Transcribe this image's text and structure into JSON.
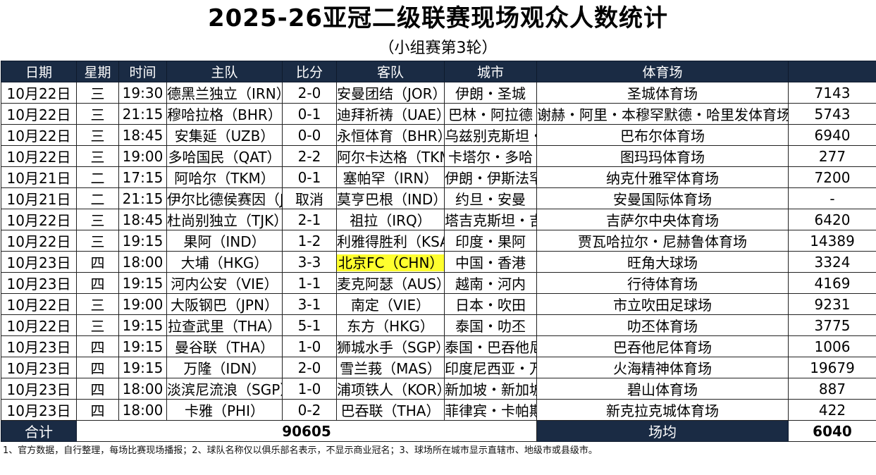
{
  "title": "2025-26亚冠二级联赛现场观众人数统计",
  "subtitle": "（小组赛第3轮）",
  "headers": {
    "date": "日期",
    "weekday": "星期",
    "time": "时间",
    "home": "主队",
    "score": "比分",
    "away": "客队",
    "city": "城市",
    "venue": "体育场",
    "attendance": ""
  },
  "rows": [
    {
      "date": "10月22日",
      "weekday": "三",
      "time": "19:30",
      "home": "德黑兰独立（IRN）",
      "score": "2-0",
      "away": "安曼团结（JOR）",
      "city": "伊朗・圣城",
      "venue": "圣城体育场",
      "attendance": "7143"
    },
    {
      "date": "10月22日",
      "weekday": "三",
      "time": "21:15",
      "home": "穆哈拉格（BHR）",
      "score": "0-1",
      "away": "迪拜祈祷（UAE）",
      "city": "巴林・阿拉德",
      "venue": "谢赫・阿里・本穆罕默德・哈里发体育场",
      "attendance": "5743"
    },
    {
      "date": "10月22日",
      "weekday": "三",
      "time": "18:45",
      "home": "安集延（UZB）",
      "score": "0-0",
      "away": "永恒体育（BHR）",
      "city": "乌兹别克斯坦・安集延",
      "venue": "巴布尔体育场",
      "attendance": "6940"
    },
    {
      "date": "10月22日",
      "weekday": "三",
      "time": "19:00",
      "home": "多哈国民（QAT）",
      "score": "2-2",
      "away": "阿尔卡达格（TKM）",
      "city": "卡塔尔・多哈",
      "venue": "图玛玛体育场",
      "attendance": "277"
    },
    {
      "date": "10月21日",
      "weekday": "二",
      "time": "17:15",
      "home": "阿哈尔（TKM）",
      "score": "0-1",
      "away": "塞帕罕（IRN）",
      "city": "伊朗・伊斯法罕",
      "venue": "纳克什雅罕体育场",
      "attendance": "7200"
    },
    {
      "date": "10月21日",
      "weekday": "二",
      "time": "21:15",
      "home": "伊尔比德侯赛因（JOR）",
      "score": "取消",
      "away": "莫亨巴根（IND）",
      "city": "约旦・安曼",
      "venue": "安曼国际体育场",
      "attendance": "-"
    },
    {
      "date": "10月22日",
      "weekday": "三",
      "time": "18:45",
      "home": "杜尚别独立（TJK）",
      "score": "2-1",
      "away": "祖拉（IRQ）",
      "city": "塔吉克斯坦・吉萨尔",
      "venue": "吉萨尔中央体育场",
      "attendance": "6420"
    },
    {
      "date": "10月22日",
      "weekday": "三",
      "time": "19:15",
      "home": "果阿（IND）",
      "score": "1-2",
      "away": "利雅得胜利（KSA）",
      "city": "印度・果阿",
      "venue": "贾瓦哈拉尔・尼赫鲁体育场",
      "attendance": "14389"
    },
    {
      "date": "10月23日",
      "weekday": "四",
      "time": "18:00",
      "home": "大埔（HKG）",
      "score": "3-3",
      "away": "北京FC（CHN）",
      "city": "中国・香港",
      "venue": "旺角大球场",
      "attendance": "3324"
    },
    {
      "date": "10月23日",
      "weekday": "四",
      "time": "19:15",
      "home": "河内公安（VIE）",
      "score": "1-1",
      "away": "麦克阿瑟（AUS）",
      "city": "越南・河内",
      "venue": "行待体育场",
      "attendance": "4169"
    },
    {
      "date": "10月22日",
      "weekday": "三",
      "time": "19:00",
      "home": "大阪钢巴（JPN）",
      "score": "3-1",
      "away": "南定（VIE）",
      "city": "日本・吹田",
      "venue": "市立吹田足球场",
      "attendance": "9231"
    },
    {
      "date": "10月22日",
      "weekday": "三",
      "time": "19:15",
      "home": "拉查武里（THA）",
      "score": "5-1",
      "away": "东方（HKG）",
      "city": "泰国・叻丕",
      "venue": "叻丕体育场",
      "attendance": "3775"
    },
    {
      "date": "10月23日",
      "weekday": "四",
      "time": "19:15",
      "home": "曼谷联（THA）",
      "score": "1-0",
      "away": "狮城水手（SGP）",
      "city": "泰国・巴吞他尼",
      "venue": "巴吞他尼体育场",
      "attendance": "1006"
    },
    {
      "date": "10月23日",
      "weekday": "四",
      "time": "19:15",
      "home": "万隆（IDN）",
      "score": "2-0",
      "away": "雪兰莪（MAS）",
      "city": "印度尼西亚・万隆",
      "venue": "火海精神体育场",
      "attendance": "19679"
    },
    {
      "date": "10月23日",
      "weekday": "四",
      "time": "18:00",
      "home": "淡滨尼流浪（SGP）",
      "score": "1-0",
      "away": "浦项铁人（KOR）",
      "city": "新加坡・新加坡",
      "venue": "碧山体育场",
      "attendance": "887"
    },
    {
      "date": "10月23日",
      "weekday": "四",
      "time": "18:00",
      "home": "卡雅（PHI）",
      "score": "0-2",
      "away": "巴吞联（THA）",
      "city": "菲律宾・卡帕斯",
      "venue": "新克拉克城体育场",
      "attendance": "422"
    }
  ],
  "highlight_color": "#ffff2e",
  "header_color": "#1a2b44",
  "total": {
    "label": "合计",
    "value": "90605",
    "avg_label": "场均",
    "avg_value": "6040"
  },
  "note": "1、官方数据，自行整理，每场比赛现场播报；2、球队名称仅以俱乐部名表示，不显示商业冠名；3、球场所在城市显示直辖市、地级市或县级市。"
}
